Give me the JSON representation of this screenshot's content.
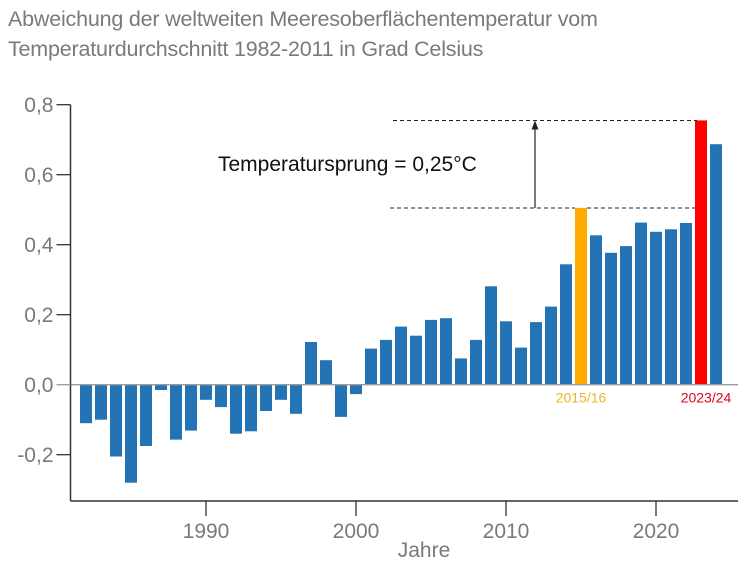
{
  "title_line1": "Abweichung der weltweiten Meeresoberflächentemperatur vom",
  "title_line2": "Temperaturdurchschnitt 1982-2011 in Grad Celsius",
  "colors": {
    "bar": "#2474b5",
    "highlight_2015": "#ffaa00",
    "highlight_2023": "#ff0000",
    "label_2015": "#f0b429",
    "label_2023": "#e2001a",
    "axis": "#333333",
    "zero_line": "#9a9a9a",
    "text_gray": "#7a7a7a"
  },
  "chart_data": {
    "type": "bar",
    "title": "Abweichung der weltweiten Meeresoberflächentemperatur vom Temperaturdurchschnitt 1982-2011 in Grad Celsius",
    "xlabel": "Jahre",
    "ylabel": "",
    "ylim": [
      -0.33,
      0.8
    ],
    "xlim": [
      1981,
      2025
    ],
    "yticks": [
      -0.2,
      0.0,
      0.2,
      0.4,
      0.6,
      0.8
    ],
    "ytick_labels": [
      "-0,2",
      "0,0",
      "0,2",
      "0,4",
      "0,6",
      "0,8"
    ],
    "xticks": [
      1990,
      2000,
      2010,
      2020
    ],
    "xtick_labels": [
      "1990",
      "2000",
      "2010",
      "2020"
    ],
    "grid": false,
    "legend": "none",
    "categories": [
      1982,
      1983,
      1984,
      1985,
      1986,
      1987,
      1988,
      1989,
      1990,
      1991,
      1992,
      1993,
      1994,
      1995,
      1996,
      1997,
      1998,
      1999,
      2000,
      2001,
      2002,
      2003,
      2004,
      2005,
      2006,
      2007,
      2008,
      2009,
      2010,
      2011,
      2012,
      2013,
      2014,
      2015,
      2016,
      2017,
      2018,
      2019,
      2020,
      2021,
      2022,
      2023,
      2024
    ],
    "values": [
      -0.11,
      -0.1,
      -0.205,
      -0.28,
      -0.175,
      -0.015,
      -0.157,
      -0.131,
      -0.043,
      -0.064,
      -0.14,
      -0.133,
      -0.075,
      -0.043,
      -0.083,
      0.122,
      0.07,
      -0.092,
      -0.027,
      0.103,
      0.128,
      0.166,
      0.14,
      0.185,
      0.19,
      0.075,
      0.128,
      0.281,
      0.181,
      0.106,
      0.179,
      0.223,
      0.344,
      0.505,
      0.427,
      0.377,
      0.396,
      0.463,
      0.437,
      0.444,
      0.462,
      0.755,
      0.687
    ],
    "highlights": [
      {
        "year": 2015,
        "label": "2015/16",
        "color_key": "highlight_2015",
        "label_color_key": "label_2015"
      },
      {
        "year": 2023,
        "label": "2023/24",
        "color_key": "highlight_2023",
        "label_color_key": "label_2023"
      }
    ],
    "annotation": {
      "text": "Temperatursprung = 0,25°C",
      "from_value": 0.505,
      "to_value": 0.755,
      "arrow_year": 2013.8
    }
  }
}
